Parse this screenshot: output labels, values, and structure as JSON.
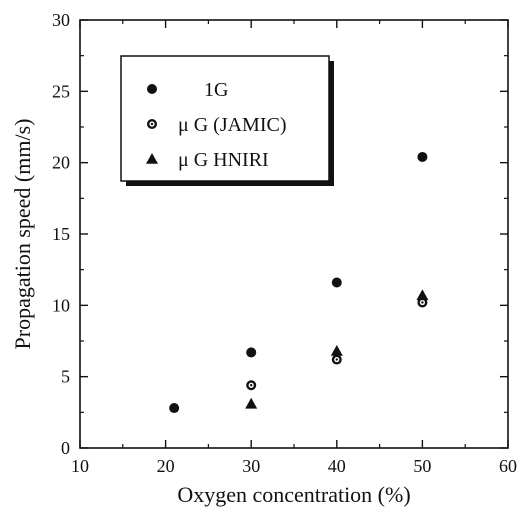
{
  "chart_data": {
    "type": "scatter",
    "xlabel": "Oxygen concentration (%)",
    "ylabel": "Propagation speed (mm/s)",
    "xlim": [
      10,
      60
    ],
    "ylim": [
      0,
      30
    ],
    "xticks": [
      10,
      20,
      30,
      40,
      50,
      60
    ],
    "yticks": [
      0,
      5,
      10,
      15,
      20,
      25,
      30
    ],
    "legend_position": "top-left",
    "grid": false,
    "series": [
      {
        "name": "1G",
        "marker": "filled-circle",
        "x": [
          21,
          30,
          40,
          50
        ],
        "y": [
          2.8,
          6.7,
          11.6,
          20.4
        ]
      },
      {
        "name": "μ G (JAMIC)",
        "marker": "bullseye-circle",
        "x": [
          30,
          40,
          50
        ],
        "y": [
          4.4,
          6.2,
          10.2
        ]
      },
      {
        "name": "μ G HNIRI",
        "marker": "triangle",
        "x": [
          30,
          40,
          50
        ],
        "y": [
          3.1,
          6.8,
          10.7
        ]
      }
    ]
  }
}
